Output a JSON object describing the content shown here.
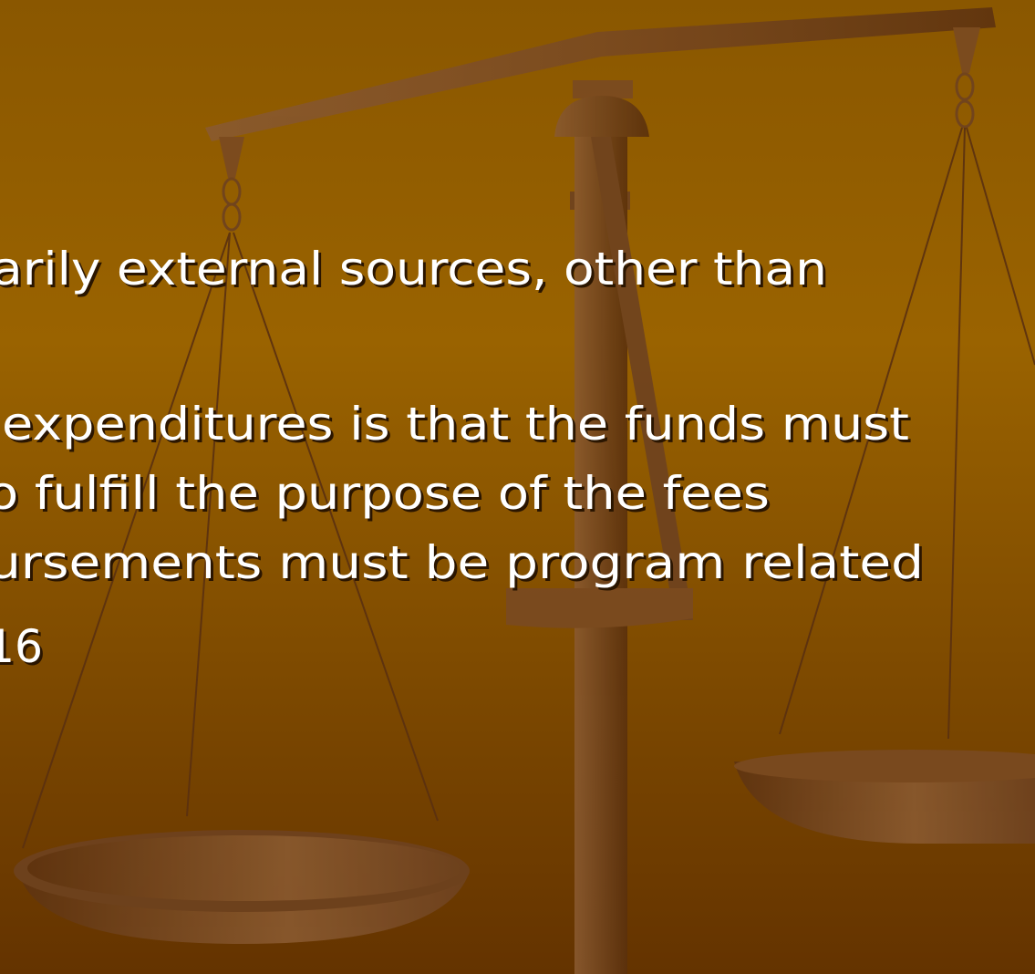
{
  "slide": {
    "lines": [
      "arily external sources, other than",
      "expenditures is that the funds must",
      "o fulfill the purpose of the fees",
      "ursements must be program related",
      "16"
    ]
  }
}
